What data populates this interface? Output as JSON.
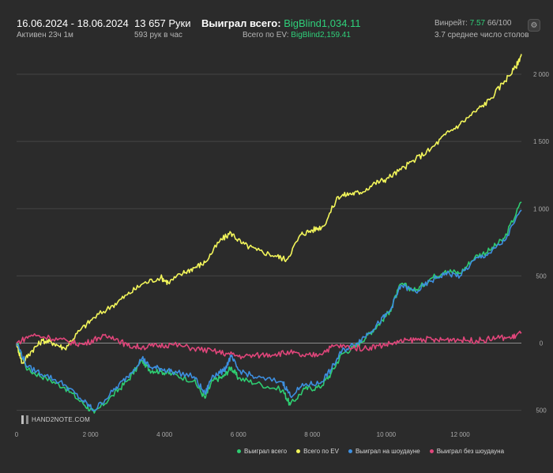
{
  "header": {
    "date_range": "16.06.2024 - 18.06.2024",
    "active": "Активен 23ч 1м",
    "hands": "13 657 Руки",
    "hands_rate": "593 рук в час",
    "won_label": "Выиграл всего:",
    "won_value": "BigBlind1,034.11",
    "ev_label": "Всего по EV:",
    "ev_value": "BigBlind2,159.41",
    "winrate_label": "Винрейт:",
    "winrate_value": "7.57",
    "winrate_suffix": "66/100",
    "tables": "3.7 среднее число столов"
  },
  "logo_text": "HAND2NOTE.COM",
  "chart_data": {
    "type": "line",
    "xlabel": "",
    "ylabel": "",
    "xlim": [
      0,
      13657
    ],
    "ylim": [
      -620,
      2200
    ],
    "x_ticks": [
      0,
      2000,
      4000,
      6000,
      8000,
      10000,
      12000
    ],
    "x_tick_labels": [
      "0",
      "2 000",
      "4 000",
      "6 000",
      "8 000",
      "10 000",
      "12 000"
    ],
    "y_ticks": [
      -500,
      0,
      500,
      1000,
      1500,
      2000
    ],
    "y_tick_labels": [
      "500",
      "0",
      "500",
      "1 000",
      "1 500",
      "2 000"
    ],
    "grid": "horizontal",
    "legend_position": "bottom-right",
    "series": [
      {
        "name": "Выиграл всего",
        "color": "#2ecc71",
        "points": [
          [
            0,
            0
          ],
          [
            300,
            -200
          ],
          [
            800,
            -260
          ],
          [
            1300,
            -330
          ],
          [
            1800,
            -450
          ],
          [
            2100,
            -520
          ],
          [
            2600,
            -390
          ],
          [
            3000,
            -280
          ],
          [
            3400,
            -130
          ],
          [
            3600,
            -200
          ],
          [
            3900,
            -210
          ],
          [
            4200,
            -230
          ],
          [
            4800,
            -280
          ],
          [
            5100,
            -410
          ],
          [
            5300,
            -280
          ],
          [
            5600,
            -250
          ],
          [
            5800,
            -180
          ],
          [
            6000,
            -260
          ],
          [
            6500,
            -300
          ],
          [
            7200,
            -350
          ],
          [
            7400,
            -460
          ],
          [
            7800,
            -340
          ],
          [
            8200,
            -330
          ],
          [
            8500,
            -230
          ],
          [
            8800,
            -80
          ],
          [
            9200,
            -20
          ],
          [
            9500,
            60
          ],
          [
            9800,
            140
          ],
          [
            10100,
            240
          ],
          [
            10400,
            440
          ],
          [
            10800,
            390
          ],
          [
            11200,
            480
          ],
          [
            11600,
            540
          ],
          [
            12000,
            520
          ],
          [
            12400,
            640
          ],
          [
            12800,
            690
          ],
          [
            13200,
            780
          ],
          [
            13657,
            1050
          ]
        ]
      },
      {
        "name": "Всего по EV",
        "color": "#f2f55a",
        "points": [
          [
            0,
            0
          ],
          [
            150,
            -150
          ],
          [
            400,
            -60
          ],
          [
            700,
            20
          ],
          [
            1000,
            0
          ],
          [
            1300,
            -40
          ],
          [
            1700,
            90
          ],
          [
            2100,
            190
          ],
          [
            2600,
            280
          ],
          [
            3000,
            360
          ],
          [
            3400,
            440
          ],
          [
            3900,
            490
          ],
          [
            4100,
            450
          ],
          [
            4500,
            520
          ],
          [
            4800,
            560
          ],
          [
            5100,
            600
          ],
          [
            5500,
            760
          ],
          [
            5800,
            820
          ],
          [
            6100,
            740
          ],
          [
            6500,
            690
          ],
          [
            7000,
            650
          ],
          [
            7300,
            620
          ],
          [
            7700,
            810
          ],
          [
            8000,
            840
          ],
          [
            8300,
            870
          ],
          [
            8700,
            1090
          ],
          [
            9000,
            1110
          ],
          [
            9300,
            1120
          ],
          [
            9700,
            1190
          ],
          [
            10000,
            1220
          ],
          [
            10400,
            1290
          ],
          [
            10800,
            1370
          ],
          [
            11200,
            1440
          ],
          [
            11600,
            1550
          ],
          [
            12000,
            1630
          ],
          [
            12400,
            1720
          ],
          [
            12800,
            1810
          ],
          [
            13200,
            1950
          ],
          [
            13500,
            2050
          ],
          [
            13657,
            2150
          ]
        ]
      },
      {
        "name": "Выиграл на шоудауне",
        "color": "#3d8fe0",
        "points": [
          [
            0,
            0
          ],
          [
            300,
            -180
          ],
          [
            800,
            -240
          ],
          [
            1300,
            -310
          ],
          [
            1800,
            -430
          ],
          [
            2100,
            -500
          ],
          [
            2600,
            -360
          ],
          [
            3000,
            -250
          ],
          [
            3400,
            -110
          ],
          [
            3600,
            -180
          ],
          [
            3900,
            -190
          ],
          [
            4200,
            -210
          ],
          [
            4800,
            -250
          ],
          [
            5100,
            -380
          ],
          [
            5300,
            -240
          ],
          [
            5600,
            -210
          ],
          [
            5800,
            -100
          ],
          [
            6000,
            -200
          ],
          [
            6500,
            -260
          ],
          [
            7200,
            -290
          ],
          [
            7400,
            -390
          ],
          [
            7800,
            -310
          ],
          [
            8200,
            -300
          ],
          [
            8500,
            -200
          ],
          [
            8800,
            -60
          ],
          [
            9200,
            0
          ],
          [
            9500,
            70
          ],
          [
            9800,
            150
          ],
          [
            10100,
            240
          ],
          [
            10400,
            430
          ],
          [
            10800,
            380
          ],
          [
            11200,
            460
          ],
          [
            11600,
            520
          ],
          [
            12000,
            500
          ],
          [
            12400,
            620
          ],
          [
            12800,
            670
          ],
          [
            13200,
            760
          ],
          [
            13657,
            990
          ]
        ]
      },
      {
        "name": "Выиграл без шоудауна",
        "color": "#e0457a",
        "points": [
          [
            0,
            0
          ],
          [
            400,
            60
          ],
          [
            900,
            40
          ],
          [
            1400,
            10
          ],
          [
            1800,
            -10
          ],
          [
            2200,
            40
          ],
          [
            2600,
            50
          ],
          [
            3000,
            -20
          ],
          [
            3400,
            -30
          ],
          [
            3800,
            -20
          ],
          [
            4200,
            -10
          ],
          [
            4800,
            -40
          ],
          [
            5300,
            -60
          ],
          [
            5700,
            -80
          ],
          [
            6100,
            -100
          ],
          [
            6600,
            -90
          ],
          [
            7000,
            -80
          ],
          [
            7400,
            -70
          ],
          [
            7800,
            -100
          ],
          [
            8200,
            -80
          ],
          [
            8600,
            -20
          ],
          [
            9000,
            -30
          ],
          [
            9400,
            -40
          ],
          [
            9800,
            -20
          ],
          [
            10200,
            0
          ],
          [
            10600,
            20
          ],
          [
            11000,
            30
          ],
          [
            11400,
            20
          ],
          [
            11800,
            30
          ],
          [
            12200,
            20
          ],
          [
            12600,
            20
          ],
          [
            13000,
            40
          ],
          [
            13400,
            40
          ],
          [
            13657,
            80
          ]
        ]
      }
    ]
  }
}
